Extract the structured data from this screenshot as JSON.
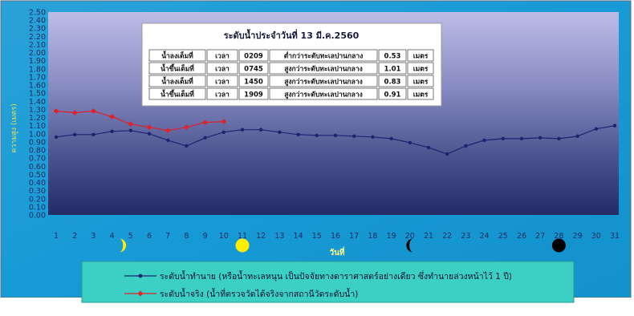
{
  "chart_data": {
    "type": "line",
    "xlabel": "วันที่",
    "ylabel": "ความสูง (เมตร)",
    "ylim": [
      0,
      2.5
    ],
    "y_ticks": [
      "0.00",
      "0.10",
      "0.20",
      "0.30",
      "0.40",
      "0.50",
      "0.60",
      "0.70",
      "0.80",
      "0.90",
      "1.00",
      "1.10",
      "1.20",
      "1.30",
      "1.40",
      "1.50",
      "1.60",
      "1.70",
      "1.80",
      "1.90",
      "2.00",
      "2.10",
      "2.20",
      "2.30",
      "2.40",
      "2.50"
    ],
    "x": [
      1,
      2,
      3,
      4,
      5,
      6,
      7,
      8,
      9,
      10,
      11,
      12,
      13,
      14,
      15,
      16,
      17,
      18,
      19,
      20,
      21,
      22,
      23,
      24,
      25,
      26,
      27,
      28,
      29,
      30,
      31
    ],
    "grid": false,
    "legend_position": "bottom",
    "series": [
      {
        "name": "ระดับน้ำทำนาย (หรือน้ำทะเลหนุน เป็นปัจจัยทางดาราศาสตร์อย่างเดียว ซึ่งทำนายล่วงหน้าไว้ 1 ปี)",
        "color": "#1c2470",
        "x": [
          1,
          2,
          3,
          4,
          5,
          6,
          7,
          8,
          9,
          10,
          11,
          12,
          13,
          14,
          15,
          16,
          17,
          18,
          19,
          20,
          21,
          22,
          23,
          24,
          25,
          26,
          27,
          28,
          29,
          30,
          31
        ],
        "values": [
          0.96,
          0.99,
          0.99,
          1.03,
          1.04,
          1.0,
          0.92,
          0.85,
          0.95,
          1.02,
          1.05,
          1.05,
          1.02,
          0.99,
          0.98,
          0.98,
          0.97,
          0.96,
          0.94,
          0.89,
          0.83,
          0.75,
          0.85,
          0.92,
          0.94,
          0.94,
          0.95,
          0.94,
          0.97,
          1.06,
          1.1
        ]
      },
      {
        "name": "ระดับน้ำจริง (น้ำที่ตรวจวัดได้จริงจากสถานีวัดระดับน้ำ)",
        "color": "#e0202a",
        "x": [
          1,
          2,
          3,
          4,
          5,
          6,
          7,
          8,
          9,
          10
        ],
        "values": [
          1.28,
          1.26,
          1.28,
          1.21,
          1.12,
          1.08,
          1.04,
          1.08,
          1.14,
          1.15
        ]
      }
    ],
    "moon_phases": [
      {
        "day": 4,
        "phase": "first-quarter"
      },
      {
        "day": 11,
        "phase": "full-moon"
      },
      {
        "day": 20,
        "phase": "last-quarter"
      },
      {
        "day": 28,
        "phase": "new-moon"
      }
    ]
  },
  "info_table": {
    "title": "ระดับน้ำประจำวันที่ 13 มี.ค.2560",
    "rows": [
      [
        "น้ำลงเต็มที่",
        "เวลา",
        "0209",
        "ต่ำกว่าระดับทะเลปานกลาง",
        "0.53",
        "เมตร"
      ],
      [
        "น้ำขึ้นเต็มที่",
        "เวลา",
        "0745",
        "สูงกว่าระดับทะเลปานกลาง",
        "1.01",
        "เมตร"
      ],
      [
        "น้ำลงเต็มที่",
        "เวลา",
        "1450",
        "สูงกว่าระดับทะเลปานกลาง",
        "0.83",
        "เมตร"
      ],
      [
        "น้ำขึ้นเต็มที่",
        "เวลา",
        "1909",
        "สูงกว่าระดับทะเลปานกลาง",
        "0.91",
        "เมตร"
      ]
    ]
  },
  "colors": {
    "background": "#1aa0d8",
    "plot_top": "#b8b8e4",
    "plot_bottom": "#262f68",
    "predicted": "#1c2470",
    "actual": "#e0202a",
    "moon": "#ffee00",
    "legend_bg": "#3ccfc4"
  }
}
